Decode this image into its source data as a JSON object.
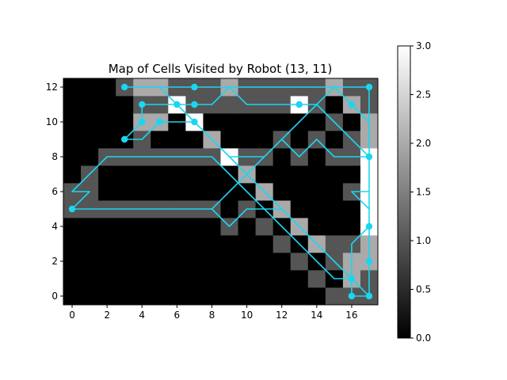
{
  "chart_data": {
    "type": "heatmap",
    "title": "Map of Cells Visited by Robot (13, 11)",
    "xlabel": "",
    "ylabel": "",
    "xlim": [
      -0.5,
      17.5
    ],
    "ylim": [
      -0.5,
      12.5
    ],
    "xticks": [
      0,
      2,
      4,
      6,
      8,
      10,
      12,
      14,
      16
    ],
    "yticks": [
      0,
      2,
      4,
      6,
      8,
      10,
      12
    ],
    "colormap": "gray",
    "colorbar": {
      "vmin": 0.0,
      "vmax": 3.0,
      "ticks": [
        "0.0",
        "0.5",
        "1.0",
        "1.5",
        "2.0",
        "2.5",
        "3.0"
      ]
    },
    "grid": [
      [
        0,
        0,
        0,
        0,
        0,
        0,
        0,
        0,
        0,
        0,
        0,
        0,
        0,
        0,
        0,
        1,
        1,
        1
      ],
      [
        0,
        0,
        0,
        0,
        0,
        0,
        0,
        0,
        0,
        0,
        0,
        0,
        0,
        0,
        1,
        0,
        2,
        1
      ],
      [
        0,
        0,
        0,
        0,
        0,
        0,
        0,
        0,
        0,
        0,
        0,
        0,
        0,
        1,
        0,
        1,
        2,
        2
      ],
      [
        0,
        0,
        0,
        0,
        0,
        0,
        0,
        0,
        0,
        0,
        0,
        0,
        1,
        0,
        2,
        1,
        1,
        2
      ],
      [
        0,
        0,
        0,
        0,
        0,
        0,
        0,
        0,
        0,
        1,
        0,
        1,
        0,
        2,
        0,
        0,
        0,
        3
      ],
      [
        1,
        1,
        1,
        1,
        1,
        1,
        1,
        1,
        1,
        0,
        1,
        0,
        2,
        0,
        0,
        0,
        0,
        3
      ],
      [
        1,
        1,
        0,
        0,
        0,
        0,
        0,
        0,
        0,
        0,
        0,
        2,
        0,
        0,
        0,
        0,
        1,
        3
      ],
      [
        0,
        1,
        0,
        0,
        0,
        0,
        0,
        0,
        0,
        0,
        2,
        0,
        0,
        0,
        0,
        0,
        0,
        3
      ],
      [
        0,
        0,
        1,
        1,
        1,
        1,
        1,
        1,
        1,
        3,
        1,
        1,
        0,
        1,
        0,
        1,
        1,
        3
      ],
      [
        0,
        0,
        0,
        0,
        1,
        0,
        0,
        0,
        2,
        0,
        0,
        0,
        1,
        0,
        1,
        0,
        1,
        2
      ],
      [
        0,
        0,
        0,
        0,
        2,
        2,
        0,
        3,
        0,
        0,
        0,
        0,
        0,
        0,
        0,
        1,
        0,
        2
      ],
      [
        0,
        0,
        0,
        0,
        1,
        1,
        3,
        1,
        1,
        1,
        1,
        1,
        1,
        3,
        1,
        0,
        2,
        1
      ],
      [
        0,
        0,
        0,
        1,
        2,
        2,
        1,
        1,
        1,
        2,
        1,
        1,
        1,
        1,
        1,
        2,
        1,
        1
      ]
    ],
    "path_color": "#1ad6f0",
    "path": [
      [
        17,
        0
      ],
      [
        16,
        1
      ],
      [
        15,
        2
      ],
      [
        14,
        3
      ],
      [
        13,
        4
      ],
      [
        12,
        5
      ],
      [
        11,
        6
      ],
      [
        10,
        7
      ],
      [
        9,
        8
      ],
      [
        8,
        9
      ],
      [
        7,
        10
      ],
      [
        6,
        11
      ],
      [
        5,
        12
      ],
      [
        4,
        12
      ],
      [
        3,
        12
      ],
      [
        4,
        12
      ],
      [
        5,
        12
      ],
      [
        6,
        12
      ],
      [
        7,
        12
      ],
      [
        8,
        12
      ],
      [
        9,
        12
      ],
      [
        10,
        12
      ],
      [
        11,
        12
      ],
      [
        12,
        12
      ],
      [
        13,
        12
      ],
      [
        14,
        12
      ],
      [
        15,
        12
      ],
      [
        16,
        12
      ],
      [
        17,
        12
      ],
      [
        17,
        11
      ],
      [
        17,
        10
      ],
      [
        17,
        9
      ],
      [
        17,
        8
      ],
      [
        17,
        7
      ],
      [
        17,
        6
      ],
      [
        16,
        6
      ],
      [
        17,
        5
      ],
      [
        17,
        4
      ],
      [
        16,
        3
      ],
      [
        16,
        2
      ],
      [
        16,
        1
      ],
      [
        16,
        0
      ],
      [
        17,
        0
      ],
      [
        17,
        1
      ],
      [
        17,
        2
      ],
      [
        17,
        3
      ],
      [
        17,
        4
      ],
      [
        17,
        5
      ],
      [
        17,
        6
      ],
      [
        17,
        7
      ],
      [
        17,
        8
      ],
      [
        16,
        9
      ],
      [
        15,
        10
      ],
      [
        14,
        11
      ],
      [
        13,
        11
      ],
      [
        12,
        11
      ],
      [
        11,
        11
      ],
      [
        10,
        11
      ],
      [
        9,
        12
      ],
      [
        8,
        11
      ],
      [
        7,
        11
      ],
      [
        6,
        11
      ],
      [
        5,
        11
      ],
      [
        4,
        11
      ],
      [
        4,
        10
      ],
      [
        3,
        9
      ],
      [
        4,
        9
      ],
      [
        5,
        10
      ],
      [
        6,
        10
      ],
      [
        7,
        10
      ],
      [
        8,
        9
      ],
      [
        9,
        8
      ],
      [
        10,
        8
      ],
      [
        11,
        8
      ],
      [
        12,
        9
      ],
      [
        13,
        8
      ],
      [
        14,
        9
      ],
      [
        15,
        8
      ],
      [
        16,
        8
      ],
      [
        17,
        8
      ],
      [
        17,
        9
      ],
      [
        17,
        10
      ],
      [
        16,
        11
      ],
      [
        15,
        12
      ],
      [
        14,
        11
      ],
      [
        13,
        10
      ],
      [
        12,
        9
      ],
      [
        11,
        8
      ],
      [
        10,
        7
      ],
      [
        9,
        6
      ],
      [
        8,
        5
      ],
      [
        7,
        5
      ],
      [
        6,
        5
      ],
      [
        5,
        5
      ],
      [
        4,
        5
      ],
      [
        3,
        5
      ],
      [
        2,
        5
      ],
      [
        1,
        5
      ],
      [
        0,
        5
      ],
      [
        1,
        6
      ],
      [
        0,
        6
      ],
      [
        1,
        7
      ],
      [
        2,
        8
      ],
      [
        3,
        8
      ],
      [
        4,
        8
      ],
      [
        5,
        8
      ],
      [
        6,
        8
      ],
      [
        7,
        8
      ],
      [
        8,
        8
      ],
      [
        9,
        7
      ],
      [
        10,
        6
      ],
      [
        11,
        5
      ],
      [
        12,
        4
      ],
      [
        13,
        3
      ],
      [
        14,
        2
      ],
      [
        15,
        1
      ],
      [
        16,
        1
      ],
      [
        16,
        0
      ],
      [
        17,
        0
      ],
      [
        16,
        1
      ],
      [
        15,
        2
      ],
      [
        14,
        3
      ],
      [
        13,
        4
      ],
      [
        12,
        5
      ],
      [
        11,
        5
      ],
      [
        10,
        5
      ],
      [
        9,
        4
      ],
      [
        8,
        5
      ],
      [
        7,
        5
      ],
      [
        6,
        5
      ],
      [
        5,
        5
      ],
      [
        4,
        5
      ],
      [
        3,
        5
      ],
      [
        2,
        5
      ],
      [
        1,
        5
      ],
      [
        0,
        5
      ]
    ],
    "markers": [
      [
        17,
        0
      ],
      [
        16,
        1
      ],
      [
        16,
        0
      ],
      [
        17,
        2
      ],
      [
        17,
        4
      ],
      [
        17,
        8
      ],
      [
        16,
        11
      ],
      [
        17,
        12
      ],
      [
        7,
        12
      ],
      [
        3,
        12
      ],
      [
        4,
        11
      ],
      [
        6,
        11
      ],
      [
        7,
        11
      ],
      [
        13,
        11
      ],
      [
        4,
        10
      ],
      [
        5,
        10
      ],
      [
        7,
        10
      ],
      [
        3,
        9
      ],
      [
        0,
        5
      ]
    ]
  }
}
